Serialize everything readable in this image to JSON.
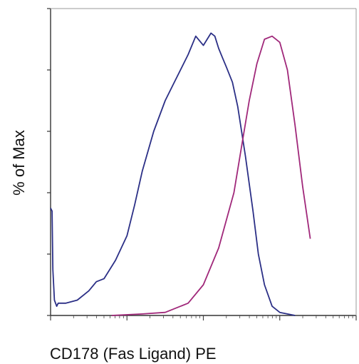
{
  "chart_data": {
    "type": "line",
    "title": "",
    "xlabel": "CD178 (Fas Ligand) PE",
    "ylabel": "% of Max",
    "x_scale": "log",
    "xlim": [
      0,
      4
    ],
    "ylim": [
      0,
      100
    ],
    "grid": false,
    "legend": "none",
    "series": [
      {
        "color": "#2b2f86",
        "x": [
          0.0,
          0.02,
          0.03,
          0.05,
          0.08,
          0.1,
          0.13,
          0.2,
          0.35,
          0.5,
          0.6,
          0.7,
          0.85,
          1.0,
          1.1,
          1.2,
          1.35,
          1.5,
          1.6,
          1.8,
          1.9,
          2.0,
          2.1,
          2.15,
          2.2,
          2.25,
          2.3,
          2.38,
          2.45,
          2.55,
          2.65,
          2.72,
          2.8,
          2.9,
          3.0,
          3.1,
          3.2
        ],
        "y": [
          35,
          34,
          15,
          5,
          3,
          4,
          4,
          4,
          5,
          8,
          11,
          12,
          18,
          26,
          36,
          47,
          60,
          70,
          75,
          85,
          91,
          88,
          92,
          91,
          87,
          84,
          81,
          76,
          68,
          52,
          34,
          20,
          10,
          3,
          1,
          0.5,
          0
        ]
      },
      {
        "color": "#a0287a",
        "x": [
          0.8,
          1.2,
          1.5,
          1.8,
          2.0,
          2.2,
          2.4,
          2.5,
          2.6,
          2.7,
          2.8,
          2.9,
          3.0,
          3.1,
          3.2,
          3.3,
          3.4
        ],
        "y": [
          0,
          0.5,
          1,
          4,
          10,
          22,
          40,
          55,
          70,
          82,
          90,
          91,
          89,
          80,
          62,
          42,
          25
        ]
      }
    ]
  }
}
